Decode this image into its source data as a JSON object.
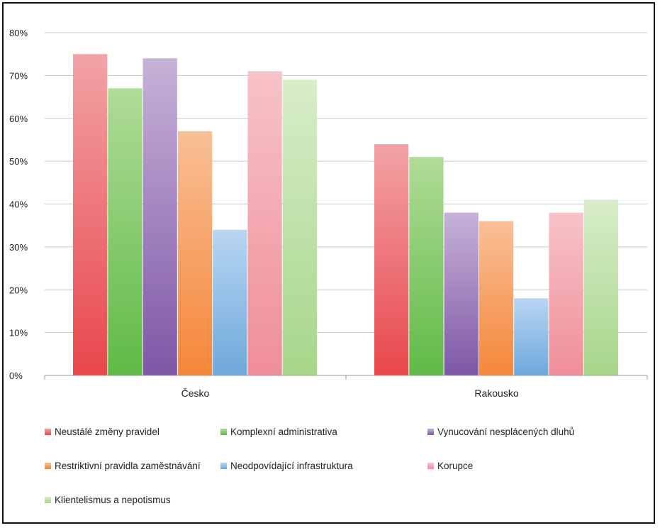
{
  "chart_data": {
    "type": "bar",
    "categories": [
      "Česko",
      "Rakousko"
    ],
    "series": [
      {
        "name": "Neustálé změny pravidel",
        "values": [
          75,
          54
        ],
        "color": "#e8474c",
        "light": "#f2a3a6"
      },
      {
        "name": "Komplexní administrativa",
        "values": [
          67,
          51
        ],
        "color": "#5fba46",
        "light": "#b0dc98"
      },
      {
        "name": "Vynucování nesplácených dluhů",
        "values": [
          74,
          38
        ],
        "color": "#7e57a6",
        "light": "#c7b2d8"
      },
      {
        "name": "Restriktivní pravidla zaměstnávání",
        "values": [
          57,
          36
        ],
        "color": "#f5873a",
        "light": "#f8bf96"
      },
      {
        "name": "Neodpovídající infrastruktura",
        "values": [
          34,
          18
        ],
        "color": "#6ea8dc",
        "light": "#b8d6f1"
      },
      {
        "name": "Korupce",
        "values": [
          71,
          38
        ],
        "color": "#ef8e99",
        "light": "#f7c3c8"
      },
      {
        "name": "Klientelismus a nepotismus",
        "values": [
          69,
          41
        ],
        "color": "#a6d68a",
        "light": "#d8edc9"
      }
    ],
    "yticks": [
      "0%",
      "10%",
      "20%",
      "30%",
      "40%",
      "50%",
      "60%",
      "70%",
      "80%"
    ],
    "ylim": [
      0,
      80
    ],
    "grid": true,
    "legend_position": "bottom"
  }
}
